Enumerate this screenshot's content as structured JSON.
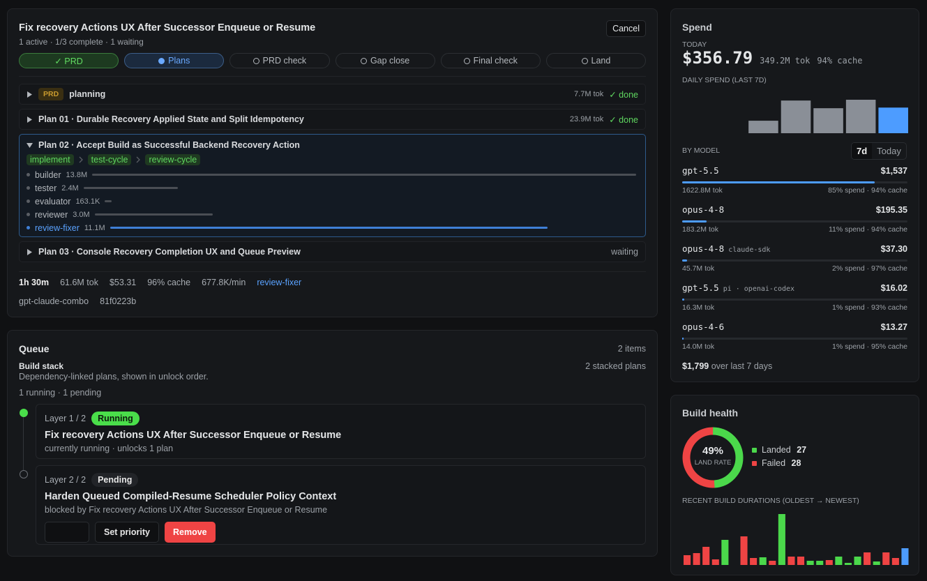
{
  "run": {
    "title": "Fix recovery Actions UX After Successor Enqueue or Resume",
    "status": "1 active · 1/3 complete · 1 waiting",
    "cancel": "Cancel",
    "stages": [
      {
        "label": "✓ PRD",
        "state": "done"
      },
      {
        "label": "Plans",
        "state": "active"
      },
      {
        "label": "PRD check",
        "state": "pending"
      },
      {
        "label": "Gap close",
        "state": "pending"
      },
      {
        "label": "Final check",
        "state": "pending"
      },
      {
        "label": "Land",
        "state": "pending"
      }
    ],
    "phases": [
      {
        "badge": "PRD",
        "name": "planning",
        "tokens": "7.7M tok",
        "status": "✓ done",
        "state": "done"
      },
      {
        "name": "Plan 01 · Durable Recovery Applied State and Split Idempotency",
        "tokens": "23.9M tok",
        "status": "✓ done",
        "state": "done"
      },
      {
        "name": "Plan 02 · Accept Build as Successful Backend Recovery Action",
        "expanded": true,
        "steps": [
          "implement",
          "test-cycle",
          "review-cycle"
        ],
        "agents": [
          {
            "name": "builder",
            "tokens": 13800000,
            "label": "13.8M"
          },
          {
            "name": "tester",
            "tokens": 2400000,
            "label": "2.4M"
          },
          {
            "name": "evaluator",
            "tokens": 163100,
            "label": "163.1K"
          },
          {
            "name": "reviewer",
            "tokens": 3000000,
            "label": "3.0M"
          },
          {
            "name": "review-fixer",
            "tokens": 11100000,
            "label": "11.1M",
            "active": true
          }
        ]
      },
      {
        "name": "Plan 03 · Console Recovery Completion UX and Queue Preview",
        "status": "waiting",
        "state": "waiting"
      }
    ],
    "summary": [
      "1h 30m",
      "61.6M tok",
      "$53.31",
      "96% cache",
      "677.8K/min",
      "review-fixer"
    ],
    "meta": [
      "gpt-claude-combo",
      "81f0223b"
    ]
  },
  "queue": {
    "title": "Queue",
    "count": "2 items",
    "stack_title": "Build stack",
    "stack_count": "2 stacked plans",
    "stack_desc": "Dependency-linked plans, shown in unlock order.",
    "progress": "1 running · 1 pending",
    "layers": [
      {
        "layer": "Layer 1 / 2",
        "badge": "Running",
        "state": "running",
        "title": "Fix recovery Actions UX After Successor Enqueue or Resume",
        "detail": "currently running · unlocks 1 plan"
      },
      {
        "layer": "Layer 2 / 2",
        "badge": "Pending",
        "state": "pending",
        "title": "Harden Queued Compiled-Resume Scheduler Policy Context",
        "detail": "blocked by Fix recovery Actions UX After Successor Enqueue or Resume",
        "actions": [
          "Set priority",
          "Remove"
        ]
      }
    ]
  },
  "spend": {
    "title": "Spend",
    "today_label": "TODAY",
    "today_cost": "$356.79",
    "today_tokens": "349.2M tok",
    "today_cache": "94% cache",
    "daily_title": "DAILY SPEND (LAST 7D)",
    "daily": [
      null,
      null,
      174,
      455,
      348,
      466,
      356.79
    ],
    "bar_color": "#8a8f97",
    "today_color": "#4d9cff",
    "by_model_title": "BY MODEL",
    "ranges": [
      "7d",
      "Today"
    ],
    "models": [
      {
        "name": "gpt-5.5",
        "cost": {
          "value": 1537,
          "label": "$1,537"
        },
        "tokens": "1622.8M tok",
        "share": "85% spend · 94% cache"
      },
      {
        "name": "opus-4-8",
        "cost": {
          "value": 195.35,
          "label": "$195.35"
        },
        "tokens": "183.2M tok",
        "share": "11% spend · 94% cache"
      },
      {
        "name": "opus-4-8",
        "provider": "claude-sdk",
        "cost": {
          "value": 37.3,
          "label": "$37.30"
        },
        "tokens": "45.7M tok",
        "share": "2% spend · 97% cache"
      },
      {
        "name": "gpt-5.5",
        "provider": "pi · openai-codex",
        "cost": {
          "value": 16.02,
          "label": "$16.02"
        },
        "tokens": "16.3M tok",
        "share": "1% spend · 93% cache"
      },
      {
        "name": "opus-4-6",
        "cost": {
          "value": 13.27,
          "label": "$13.27"
        },
        "tokens": "14.0M tok",
        "share": "1% spend · 95% cache"
      }
    ],
    "total": {
      "value": 1799,
      "label": "$1,799"
    },
    "total_suffix": "over last 7 days"
  },
  "health": {
    "title": "Build health",
    "rate": "49%",
    "rate_label": "LAND RATE",
    "landed_label": "Landed",
    "landed": 27,
    "failed_label": "Failed",
    "failed": 28,
    "colors": {
      "landed": "#4bd84b",
      "failed": "#ef4444",
      "running": "#4d9cff"
    },
    "durations_title": "RECENT BUILD DURATIONS (OLDEST → NEWEST)",
    "durations": [
      14,
      17,
      26,
      8,
      36,
      null,
      41,
      10,
      11,
      6,
      73,
      12,
      12,
      6,
      6,
      7,
      12,
      3,
      12,
      18,
      5,
      18,
      10,
      24
    ],
    "outcomes": [
      "failed",
      "failed",
      "failed",
      "failed",
      "landed",
      null,
      "failed",
      "failed",
      "landed",
      "failed",
      "landed",
      "failed",
      "failed",
      "landed",
      "landed",
      "failed",
      "landed",
      "landed",
      "landed",
      "failed",
      "landed",
      "failed",
      "failed",
      "running"
    ]
  }
}
